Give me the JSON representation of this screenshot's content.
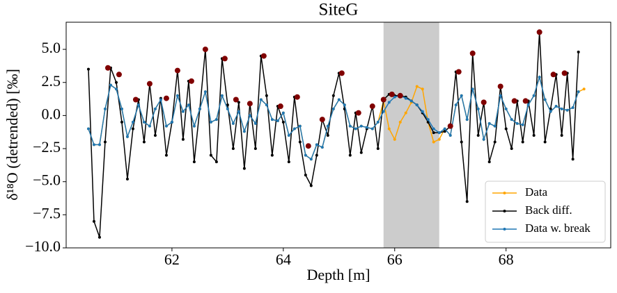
{
  "chart_data": {
    "type": "line",
    "title": "SiteG",
    "xlabel": "Depth [m]",
    "ylabel": "δ¹⁸O (detrended) [‰]",
    "xlim": [
      60.1,
      69.88
    ],
    "ylim": [
      -10,
      7.05
    ],
    "xticks": [
      62,
      64,
      66,
      68
    ],
    "yticks": [
      {
        "value": -10,
        "label": "−10.0"
      },
      {
        "value": -7.5,
        "label": "−7.5"
      },
      {
        "value": -5,
        "label": "−5.0"
      },
      {
        "value": -2.5,
        "label": "−2.5"
      },
      {
        "value": 0,
        "label": "0.0"
      },
      {
        "value": 2.5,
        "label": "2.5"
      },
      {
        "value": 5,
        "label": "5.0"
      }
    ],
    "legend": "lower right",
    "span": {
      "range": [
        65.8,
        66.8
      ],
      "color": "#cccccc"
    },
    "x": [
      60.5,
      60.6,
      60.7,
      60.8,
      60.9,
      61.0,
      61.1,
      61.2,
      61.3,
      61.4,
      61.5,
      61.6,
      61.7,
      61.8,
      61.9,
      62.0,
      62.1,
      62.2,
      62.3,
      62.4,
      62.5,
      62.6,
      62.7,
      62.8,
      62.9,
      63.0,
      63.1,
      63.2,
      63.3,
      63.4,
      63.5,
      63.6,
      63.7,
      63.8,
      63.9,
      64.0,
      64.1,
      64.2,
      64.3,
      64.4,
      64.5,
      64.6,
      64.7,
      64.8,
      64.9,
      65.0,
      65.1,
      65.2,
      65.3,
      65.4,
      65.5,
      65.6,
      65.7,
      65.8,
      65.9,
      66.0,
      66.1,
      66.2,
      66.3,
      66.4,
      66.5,
      66.6,
      66.7,
      66.8,
      66.9,
      67.0,
      67.1,
      67.2,
      67.3,
      67.4,
      67.5,
      67.6,
      67.7,
      67.8,
      67.9,
      68.0,
      68.1,
      68.2,
      68.3,
      68.4,
      68.5,
      68.6,
      68.7,
      68.8,
      68.9,
      69.0,
      69.1,
      69.2,
      69.3,
      69.4
    ],
    "series": [
      {
        "name": "Data",
        "color": "#ffa500",
        "values": [
          -1.0,
          -2.2,
          -2.2,
          0.5,
          2.3,
          2.0,
          0.5,
          -1.6,
          -0.5,
          0.8,
          -0.5,
          -0.8,
          0.5,
          1.2,
          -0.8,
          -0.5,
          1.5,
          0.3,
          0.8,
          -0.8,
          0.5,
          1.8,
          -0.5,
          -0.3,
          1.5,
          0.5,
          -0.6,
          0.3,
          -1.2,
          0.0,
          -0.6,
          1.2,
          0.8,
          -0.3,
          -0.4,
          0.2,
          -1.5,
          -1.0,
          -0.8,
          -3.0,
          -3.3,
          -2.2,
          -2.4,
          -0.8,
          0.5,
          1.2,
          0.8,
          -0.8,
          -1.0,
          -0.8,
          -0.9,
          -1.0,
          -0.5,
          1.1,
          -1.0,
          -1.8,
          -0.5,
          0.2,
          1.0,
          2.2,
          2.0,
          -0.5,
          -2.0,
          -1.8,
          -1.0,
          -1.5,
          0.8,
          1.5,
          -0.3,
          2.0,
          0.5,
          -1.8,
          -0.6,
          -0.8,
          1.5,
          0.5,
          -0.3,
          -0.6,
          -0.7,
          0.8,
          1.5,
          2.9,
          1.2,
          0.3,
          0.7,
          0.5,
          0.4,
          0.6,
          1.8,
          2.0
        ]
      },
      {
        "name": "Back diff.",
        "color": "#000000",
        "values": [
          3.5,
          -8.0,
          -9.2,
          -2.0,
          3.6,
          2.5,
          -0.5,
          -4.8,
          -1.0,
          1.2,
          -2.0,
          2.4,
          -1.5,
          1.3,
          -3.0,
          -0.5,
          3.4,
          -1.8,
          2.6,
          -3.5,
          0.5,
          5.0,
          -3.0,
          -3.5,
          4.3,
          0.8,
          -2.5,
          1.0,
          -4.0,
          0.9,
          -2.5,
          4.5,
          1.5,
          -3.0,
          0.7,
          -0.5,
          -3.5,
          1.4,
          -2.0,
          -4.5,
          -5.3,
          -3.0,
          -0.3,
          -1.5,
          1.5,
          3.2,
          0.5,
          -3.0,
          0.2,
          -2.8,
          -1.0,
          0.7,
          -2.5,
          1.2,
          1.6,
          1.5,
          1.5,
          1.4,
          1.1,
          0.8,
          0.2,
          -0.5,
          -1.3,
          -1.3,
          -1.2,
          -0.8,
          3.3,
          -2.0,
          -6.5,
          4.7,
          -1.5,
          1.0,
          -3.5,
          -2.0,
          2.2,
          -1.0,
          -2.5,
          1.1,
          -2.0,
          1.1,
          -1.5,
          6.3,
          -2.0,
          0.5,
          3.1,
          -1.5,
          3.2,
          -3.3,
          4.8,
          null
        ]
      },
      {
        "name": "Data w. break",
        "color": "#1f77b4",
        "values": [
          -1.0,
          -2.2,
          -2.2,
          0.5,
          2.3,
          2.0,
          0.5,
          -1.6,
          -0.5,
          0.8,
          -0.5,
          -0.8,
          0.5,
          1.2,
          -0.8,
          -0.5,
          1.5,
          0.3,
          0.8,
          -0.8,
          0.5,
          1.8,
          -0.5,
          -0.3,
          1.5,
          0.5,
          -0.6,
          0.3,
          -1.2,
          0.0,
          -0.6,
          1.2,
          0.8,
          -0.3,
          -0.4,
          0.2,
          -1.5,
          -1.0,
          -0.8,
          -3.0,
          -3.3,
          -2.2,
          -2.4,
          -0.8,
          0.5,
          1.2,
          0.8,
          -0.8,
          -1.0,
          -0.8,
          -0.9,
          -1.0,
          -0.5,
          0.3,
          1.0,
          1.4,
          1.5,
          1.3,
          1.1,
          0.8,
          0.3,
          -0.3,
          -1.0,
          -1.3,
          -1.0,
          -1.5,
          0.8,
          1.5,
          -0.3,
          2.0,
          0.5,
          -1.8,
          -0.6,
          -0.8,
          1.5,
          0.5,
          -0.3,
          -0.6,
          -0.7,
          0.8,
          1.5,
          2.9,
          1.2,
          0.3,
          0.7,
          0.5,
          0.4,
          0.6,
          1.8,
          null
        ]
      }
    ],
    "peaks": {
      "color": "#800000",
      "x": [
        60.85,
        61.05,
        61.35,
        61.6,
        61.9,
        62.1,
        62.35,
        62.6,
        62.95,
        63.15,
        63.4,
        63.65,
        63.95,
        64.25,
        64.45,
        64.7,
        65.05,
        65.35,
        65.6,
        65.8,
        65.95,
        66.1,
        67.0,
        67.15,
        67.4,
        67.6,
        67.9,
        68.15,
        68.35,
        68.6,
        68.85,
        69.05
      ],
      "y": [
        3.6,
        3.1,
        1.2,
        2.4,
        1.3,
        3.4,
        2.6,
        5.0,
        4.3,
        1.2,
        0.9,
        4.5,
        0.7,
        1.4,
        -2.3,
        -0.3,
        3.2,
        0.2,
        0.7,
        1.2,
        1.6,
        1.5,
        -0.8,
        3.3,
        4.7,
        1.0,
        2.2,
        1.1,
        1.1,
        6.3,
        3.1,
        3.2
      ]
    }
  }
}
